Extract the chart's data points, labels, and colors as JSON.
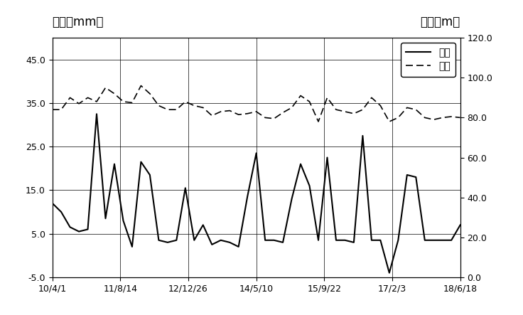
{
  "left_ylabel": "位移（mm）",
  "right_ylabel": "水位（m）",
  "left_ylim": [
    -5.0,
    50.0
  ],
  "right_ylim": [
    0.0,
    120.0
  ],
  "left_yticks": [
    -5.0,
    5.0,
    15.0,
    25.0,
    35.0,
    45.0
  ],
  "right_yticks": [
    0.0,
    20.0,
    40.0,
    60.0,
    80.0,
    100.0,
    120.0
  ],
  "xtick_labels": [
    "10/4/1",
    "11/8/14",
    "12/12/26",
    "14/5/10",
    "15/9/22",
    "17/2/3",
    "18/6/18"
  ],
  "legend_displacement": "位移",
  "legend_waterlevel": "水位",
  "displacement": [
    12.0,
    10.0,
    6.5,
    5.5,
    6.0,
    32.5,
    8.5,
    21.0,
    8.0,
    2.0,
    21.5,
    18.5,
    3.5,
    3.0,
    3.5,
    15.5,
    3.5,
    7.0,
    2.5,
    3.5,
    3.0,
    2.0,
    13.5,
    23.5,
    3.5,
    3.5,
    3.0,
    13.0,
    21.0,
    16.0,
    3.5,
    22.5,
    3.5,
    3.5,
    3.0,
    27.5,
    3.5,
    3.5,
    -4.0,
    3.5,
    18.5,
    18.0,
    3.5,
    3.5,
    3.5,
    3.5,
    7.0
  ],
  "waterlevel": [
    84.0,
    84.0,
    90.0,
    87.0,
    90.0,
    88.0,
    95.0,
    92.0,
    88.0,
    87.5,
    96.0,
    92.0,
    86.0,
    84.0,
    84.0,
    88.0,
    86.0,
    85.0,
    81.0,
    83.0,
    83.5,
    81.5,
    82.0,
    83.0,
    80.0,
    79.5,
    82.5,
    85.0,
    91.0,
    88.0,
    78.0,
    90.0,
    84.0,
    83.0,
    82.0,
    84.0,
    90.0,
    86.0,
    78.0,
    80.0,
    85.0,
    84.0,
    80.0,
    79.0,
    80.0,
    80.5,
    80.0
  ],
  "n_points_displacement": 47,
  "n_points_waterlevel": 47,
  "background_color": "#ffffff"
}
